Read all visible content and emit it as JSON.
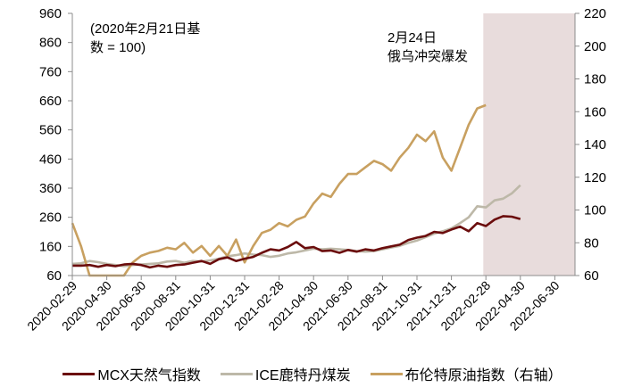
{
  "chart_data": {
    "type": "line",
    "title": "",
    "annotation_note": [
      "(2020年2月21日基",
      "数 = 100)"
    ],
    "event_annotation": [
      "2月24日",
      "俄乌冲突爆发"
    ],
    "shaded_region": {
      "start": "2022-02-24",
      "end": "2022-07",
      "color": "#e8dcdc"
    },
    "x_tick_labels": [
      "2020-02-29",
      "2020-04-30",
      "2020-06-30",
      "2020-08-31",
      "2020-10-31",
      "2020-12-31",
      "2021-02-28",
      "2021-04-30",
      "2021-06-30",
      "2021-08-31",
      "2021-10-31",
      "2021-12-31",
      "2022-02-28",
      "2022-04-30",
      "2022-06-30"
    ],
    "y_left": {
      "min": 60,
      "max": 960,
      "ticks": [
        60,
        160,
        260,
        360,
        460,
        560,
        660,
        760,
        860,
        960
      ]
    },
    "y_right": {
      "min": 60,
      "max": 220,
      "ticks": [
        60,
        80,
        100,
        120,
        140,
        160,
        180,
        200,
        220
      ]
    },
    "grid": false,
    "legend_position": "bottom",
    "x_unit": "months since 2020-02-29",
    "series": [
      {
        "name": "MCX天然气指数",
        "axis": "left",
        "color": "#6b0d0d",
        "points": [
          [
            0,
            94
          ],
          [
            0.5,
            94
          ],
          [
            1,
            96
          ],
          [
            1.5,
            90
          ],
          [
            2,
            96
          ],
          [
            2.5,
            92
          ],
          [
            3,
            98
          ],
          [
            3.5,
            100
          ],
          [
            4,
            96
          ],
          [
            4.5,
            88
          ],
          [
            5,
            94
          ],
          [
            5.5,
            90
          ],
          [
            6,
            96
          ],
          [
            6.5,
            98
          ],
          [
            7,
            104
          ],
          [
            7.5,
            110
          ],
          [
            8,
            100
          ],
          [
            8.5,
            116
          ],
          [
            9,
            122
          ],
          [
            9.5,
            110
          ],
          [
            10,
            118
          ],
          [
            10.5,
            124
          ],
          [
            11,
            138
          ],
          [
            11.5,
            150
          ],
          [
            12,
            146
          ],
          [
            12.5,
            158
          ],
          [
            13,
            175
          ],
          [
            13.5,
            154
          ],
          [
            14,
            158
          ],
          [
            14.5,
            144
          ],
          [
            15,
            146
          ],
          [
            15.5,
            138
          ],
          [
            16,
            148
          ],
          [
            16.5,
            142
          ],
          [
            17,
            150
          ],
          [
            17.5,
            146
          ],
          [
            18,
            154
          ],
          [
            18.5,
            160
          ],
          [
            19,
            166
          ],
          [
            19.5,
            182
          ],
          [
            20,
            190
          ],
          [
            20.5,
            196
          ],
          [
            21,
            210
          ],
          [
            21.5,
            206
          ],
          [
            22,
            218
          ],
          [
            22.5,
            228
          ],
          [
            23,
            212
          ],
          [
            23.5,
            240
          ],
          [
            24,
            230
          ],
          [
            24.5,
            252
          ],
          [
            25,
            264
          ],
          [
            25.5,
            262
          ],
          [
            26,
            254
          ]
        ]
      },
      {
        "name": "ICE鹿特丹煤炭",
        "axis": "left",
        "color": "#bdb8a8",
        "points": [
          [
            0,
            100
          ],
          [
            0.5,
            102
          ],
          [
            1,
            110
          ],
          [
            1.5,
            106
          ],
          [
            2,
            100
          ],
          [
            2.5,
            96
          ],
          [
            3,
            92
          ],
          [
            3.5,
            96
          ],
          [
            4,
            98
          ],
          [
            4.5,
            100
          ],
          [
            5,
            102
          ],
          [
            5.5,
            108
          ],
          [
            6,
            110
          ],
          [
            6.5,
            104
          ],
          [
            7,
            110
          ],
          [
            7.5,
            108
          ],
          [
            8,
            112
          ],
          [
            8.5,
            118
          ],
          [
            9,
            126
          ],
          [
            9.5,
            130
          ],
          [
            10,
            136
          ],
          [
            10.5,
            132
          ],
          [
            11,
            130
          ],
          [
            11.5,
            124
          ],
          [
            12,
            128
          ],
          [
            12.5,
            136
          ],
          [
            13,
            140
          ],
          [
            13.5,
            146
          ],
          [
            14,
            152
          ],
          [
            14.5,
            150
          ],
          [
            15,
            152
          ],
          [
            15.5,
            150
          ],
          [
            16,
            148
          ],
          [
            16.5,
            144
          ],
          [
            17,
            142
          ],
          [
            17.5,
            144
          ],
          [
            18,
            150
          ],
          [
            18.5,
            156
          ],
          [
            19,
            162
          ],
          [
            19.5,
            172
          ],
          [
            20,
            180
          ],
          [
            20.5,
            192
          ],
          [
            21,
            204
          ],
          [
            21.5,
            212
          ],
          [
            22,
            222
          ],
          [
            22.5,
            240
          ],
          [
            23,
            260
          ],
          [
            23.5,
            298
          ],
          [
            24,
            294
          ],
          [
            24.5,
            318
          ],
          [
            25,
            324
          ],
          [
            25.5,
            342
          ],
          [
            26,
            370
          ]
        ]
      },
      {
        "name": "布伦特原油指数（右轴）",
        "axis": "right",
        "color": "#c8a060",
        "points": [
          [
            0,
            92
          ],
          [
            0.5,
            78
          ],
          [
            1,
            60
          ],
          [
            1.5,
            52
          ],
          [
            2,
            54
          ],
          [
            2.5,
            50
          ],
          [
            3,
            60
          ],
          [
            3.5,
            68
          ],
          [
            4,
            72
          ],
          [
            4.5,
            74
          ],
          [
            5,
            75
          ],
          [
            5.5,
            77
          ],
          [
            6,
            76
          ],
          [
            6.5,
            80
          ],
          [
            7,
            74
          ],
          [
            7.5,
            78
          ],
          [
            8,
            72
          ],
          [
            8.5,
            78
          ],
          [
            9,
            72
          ],
          [
            9.5,
            82
          ],
          [
            10,
            68
          ],
          [
            10.5,
            78
          ],
          [
            11,
            86
          ],
          [
            11.5,
            88
          ],
          [
            12,
            92
          ],
          [
            12.5,
            90
          ],
          [
            13,
            94
          ],
          [
            13.5,
            96
          ],
          [
            14,
            104
          ],
          [
            14.5,
            110
          ],
          [
            15,
            108
          ],
          [
            15.5,
            116
          ],
          [
            16,
            122
          ],
          [
            16.5,
            122
          ],
          [
            17,
            126
          ],
          [
            17.5,
            130
          ],
          [
            18,
            128
          ],
          [
            18.5,
            124
          ],
          [
            19,
            132
          ],
          [
            19.5,
            138
          ],
          [
            20,
            146
          ],
          [
            20.5,
            142
          ],
          [
            21,
            148
          ],
          [
            21.5,
            132
          ],
          [
            22,
            124
          ],
          [
            22.5,
            138
          ],
          [
            23,
            152
          ],
          [
            23.5,
            162
          ],
          [
            24,
            164
          ]
        ]
      }
    ]
  },
  "legend": {
    "items": [
      {
        "label": "MCX天然气指数",
        "color": "#6b0d0d"
      },
      {
        "label": "ICE鹿特丹煤炭",
        "color": "#bdb8a8"
      },
      {
        "label": "布伦特原油指数（右轴）",
        "color": "#c8a060"
      }
    ]
  }
}
